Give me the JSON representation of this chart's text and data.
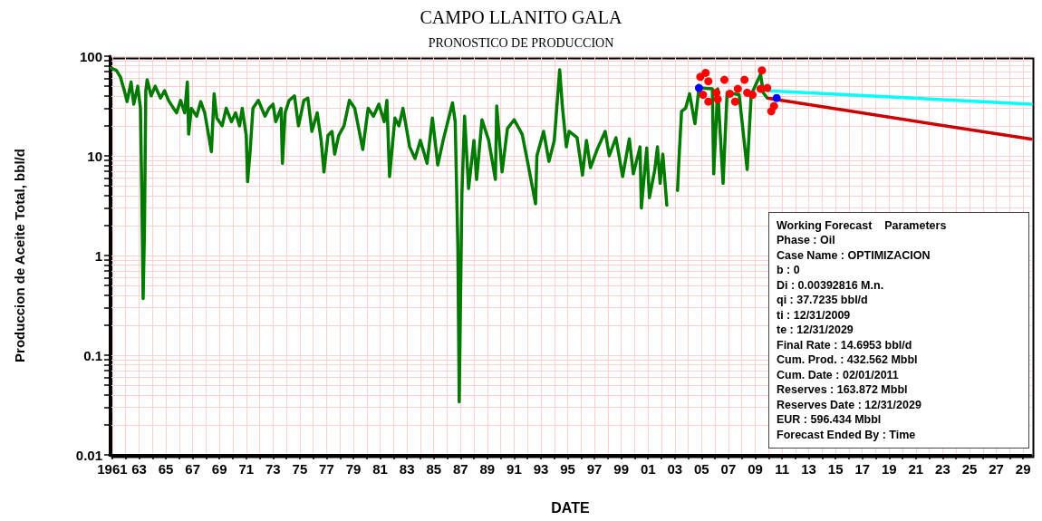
{
  "chart_data": {
    "type": "line",
    "title": "CAMPO LLANITO GALA",
    "subtitle": "PRONOSTICO DE PRODUCCION",
    "xlabel": "DATE",
    "ylabel": "Produccion de Aceite Total, bbl/d",
    "log": "y",
    "grid": true,
    "xlim": [
      1960.8,
      2029.6
    ],
    "ylim": [
      0.01,
      100
    ],
    "xticks": [
      {
        "value": 1961,
        "label": "1961"
      },
      {
        "value": 1962,
        "label": null
      },
      {
        "value": 1963,
        "label": "63"
      },
      {
        "value": 1964,
        "label": null
      },
      {
        "value": 1965,
        "label": "65"
      },
      {
        "value": 1966,
        "label": null
      },
      {
        "value": 1967,
        "label": "67"
      },
      {
        "value": 1968,
        "label": null
      },
      {
        "value": 1969,
        "label": "69"
      },
      {
        "value": 1970,
        "label": null
      },
      {
        "value": 1971,
        "label": "71"
      },
      {
        "value": 1972,
        "label": null
      },
      {
        "value": 1973,
        "label": "73"
      },
      {
        "value": 1974,
        "label": null
      },
      {
        "value": 1975,
        "label": "75"
      },
      {
        "value": 1976,
        "label": null
      },
      {
        "value": 1977,
        "label": "77"
      },
      {
        "value": 1978,
        "label": null
      },
      {
        "value": 1979,
        "label": "79"
      },
      {
        "value": 1980,
        "label": null
      },
      {
        "value": 1981,
        "label": "81"
      },
      {
        "value": 1982,
        "label": null
      },
      {
        "value": 1983,
        "label": "83"
      },
      {
        "value": 1984,
        "label": null
      },
      {
        "value": 1985,
        "label": "85"
      },
      {
        "value": 1986,
        "label": null
      },
      {
        "value": 1987,
        "label": "87"
      },
      {
        "value": 1988,
        "label": null
      },
      {
        "value": 1989,
        "label": "89"
      },
      {
        "value": 1990,
        "label": null
      },
      {
        "value": 1991,
        "label": "91"
      },
      {
        "value": 1992,
        "label": null
      },
      {
        "value": 1993,
        "label": "93"
      },
      {
        "value": 1994,
        "label": null
      },
      {
        "value": 1995,
        "label": "95"
      },
      {
        "value": 1996,
        "label": null
      },
      {
        "value": 1997,
        "label": "97"
      },
      {
        "value": 1998,
        "label": null
      },
      {
        "value": 1999,
        "label": "99"
      },
      {
        "value": 2000,
        "label": null
      },
      {
        "value": 2001,
        "label": "01"
      },
      {
        "value": 2002,
        "label": null
      },
      {
        "value": 2003,
        "label": "03"
      },
      {
        "value": 2004,
        "label": null
      },
      {
        "value": 2005,
        "label": "05"
      },
      {
        "value": 2006,
        "label": null
      },
      {
        "value": 2007,
        "label": "07"
      },
      {
        "value": 2008,
        "label": null
      },
      {
        "value": 2009,
        "label": "09"
      },
      {
        "value": 2010,
        "label": null
      },
      {
        "value": 2011,
        "label": "11"
      },
      {
        "value": 2012,
        "label": null
      },
      {
        "value": 2013,
        "label": "13"
      },
      {
        "value": 2014,
        "label": null
      },
      {
        "value": 2015,
        "label": "15"
      },
      {
        "value": 2016,
        "label": null
      },
      {
        "value": 2017,
        "label": "17"
      },
      {
        "value": 2018,
        "label": null
      },
      {
        "value": 2019,
        "label": "19"
      },
      {
        "value": 2020,
        "label": null
      },
      {
        "value": 2021,
        "label": "21"
      },
      {
        "value": 2022,
        "label": null
      },
      {
        "value": 2023,
        "label": "23"
      },
      {
        "value": 2024,
        "label": null
      },
      {
        "value": 2025,
        "label": "25"
      },
      {
        "value": 2026,
        "label": null
      },
      {
        "value": 2027,
        "label": "27"
      },
      {
        "value": 2028,
        "label": null
      },
      {
        "value": 2029,
        "label": "29"
      }
    ],
    "yticks": [
      0.01,
      {
        "value": 0.02,
        "label": null
      },
      {
        "value": 0.03,
        "label": null
      },
      {
        "value": 0.04,
        "label": null
      },
      {
        "value": 0.05,
        "label": null
      },
      {
        "value": 0.06,
        "label": null
      },
      {
        "value": 0.07,
        "label": null
      },
      {
        "value": 0.08,
        "label": null
      },
      {
        "value": 0.09,
        "label": null
      },
      0.1,
      {
        "value": 0.2,
        "label": null
      },
      {
        "value": 0.3,
        "label": null
      },
      {
        "value": 0.4,
        "label": null
      },
      {
        "value": 0.5,
        "label": null
      },
      {
        "value": 0.6,
        "label": null
      },
      {
        "value": 0.7,
        "label": null
      },
      {
        "value": 0.8,
        "label": null
      },
      {
        "value": 0.9,
        "label": null
      },
      1,
      {
        "value": 2,
        "label": null
      },
      {
        "value": 3,
        "label": null
      },
      {
        "value": 4,
        "label": null
      },
      {
        "value": 5,
        "label": null
      },
      {
        "value": 6,
        "label": null
      },
      {
        "value": 7,
        "label": null
      },
      {
        "value": 8,
        "label": null
      },
      {
        "value": 9,
        "label": null
      },
      10,
      {
        "value": 20,
        "label": null
      },
      {
        "value": 30,
        "label": null
      },
      {
        "value": 40,
        "label": null
      },
      {
        "value": 50,
        "label": null
      },
      {
        "value": 60,
        "label": null
      },
      {
        "value": 70,
        "label": null
      },
      {
        "value": 80,
        "label": null
      },
      {
        "value": 90,
        "label": null
      },
      100
    ],
    "series": [
      {
        "color": "#007a00",
        "x": [
          1960.9,
          1961.3,
          1961.6,
          1961.9,
          1962.1,
          1962.4,
          1962.6,
          1962.9,
          1963.1,
          1963.2,
          1963.3,
          1963.4,
          1963.5,
          1963.6,
          1963.9,
          1964.2,
          1964.6,
          1964.9,
          1965.2,
          1965.5,
          1965.8,
          1966.1,
          1966.4,
          1966.6,
          1966.7,
          1966.9,
          1967.3,
          1967.6,
          1967.9,
          1968.4,
          1968.6,
          1968.8,
          1969.2,
          1969.5,
          1969.9,
          1970.2,
          1970.5,
          1970.7,
          1971.0,
          1971.1,
          1971.3,
          1971.5,
          1971.9,
          1972.4,
          1972.7,
          1973.0,
          1973.2,
          1973.6,
          1973.7,
          1973.9,
          1974.2,
          1974.6,
          1974.9,
          1975.3,
          1975.6,
          1975.9,
          1976.3,
          1976.6,
          1976.8,
          1977.1,
          1977.4,
          1977.6,
          1977.9,
          1978.3,
          1978.7,
          1979.1,
          1979.5,
          1979.7,
          1980.1,
          1980.5,
          1980.9,
          1981.3,
          1981.5,
          1981.7,
          1982.1,
          1982.4,
          1982.7,
          1983.2,
          1983.6,
          1984.0,
          1984.5,
          1984.9,
          1985.3,
          1985.7,
          1986.4,
          1986.6,
          1986.8,
          1986.9,
          1987.1,
          1987.3,
          1987.6,
          1988.0,
          1988.2,
          1988.6,
          1989.1,
          1989.6,
          1989.7,
          1990.1,
          1990.5,
          1991.0,
          1991.6,
          1992.0,
          1992.6,
          1992.7,
          1993.2,
          1993.6,
          1994.0,
          1994.4,
          1994.6,
          1994.9,
          1995.1,
          1995.7,
          1995.9,
          1996.1,
          1996.4,
          1996.7,
          1997.2,
          1997.8,
          1998.1,
          1998.6,
          1999.1,
          1999.6,
          1999.9,
          2000.4,
          2000.5,
          2000.9,
          2001.1,
          2001.5,
          2001.7,
          2001.9,
          2002.1,
          2002.4,
          2002.8,
          2003.2,
          2003.3,
          2003.5,
          2003.8,
          2004.1,
          2004.5,
          2004.8,
          2005.8,
          2005.9,
          2006.2,
          2006.6,
          2006.9,
          2007.8,
          2008.4,
          2008.7,
          2009.4,
          2009.6,
          2009.9
        ],
        "values": [
          76,
          72,
          62,
          45,
          35,
          55,
          33,
          50,
          30,
          4.5,
          0.37,
          1.76,
          45,
          58,
          40,
          50,
          38,
          45,
          36,
          31,
          27,
          36,
          27,
          55,
          16.5,
          30,
          25,
          35,
          27,
          11,
          42,
          24,
          20,
          30,
          22,
          27,
          20,
          30,
          16,
          5.5,
          11.6,
          30,
          36,
          25,
          30,
          33,
          22,
          30,
          8.4,
          27,
          36,
          40,
          20,
          36,
          38,
          17.6,
          27,
          14,
          6.9,
          16,
          17.6,
          10.4,
          16,
          20,
          36,
          30,
          16,
          11.6,
          30,
          25,
          33,
          22,
          36,
          6.2,
          24,
          20,
          30,
          12.3,
          9.4,
          14.3,
          8.4,
          24,
          8.1,
          14.3,
          34,
          22,
          1.23,
          0.034,
          4.1,
          25,
          4.7,
          14.3,
          5.8,
          23,
          14.3,
          5.8,
          31.6,
          6.9,
          18.8,
          23,
          16.5,
          8.8,
          3.3,
          10,
          17.6,
          8.8,
          14.3,
          73,
          31.6,
          12.3,
          17.6,
          15.2,
          10,
          6.4,
          14.3,
          7.6,
          11.6,
          17.6,
          10,
          15.2,
          6.2,
          14.8,
          6.6,
          12.3,
          3.0,
          12,
          3.8,
          7.2,
          12.3,
          5.3,
          10.4,
          3.2,
          null,
          4.5,
          8.8,
          28,
          30,
          42,
          21,
          48,
          47,
          6.6,
          47,
          5.3,
          43,
          41,
          7.3,
          41,
          66,
          43,
          38
        ]
      },
      {
        "color": "#00ffff",
        "x": [
          2010.0,
          2029.6
        ],
        "values": [
          45,
          33
        ]
      },
      {
        "color": "#cc0000",
        "x": [
          2010.0,
          2029.6
        ],
        "values": [
          37.7,
          14.7
        ]
      },
      {
        "type": "scatter",
        "marker": "circle",
        "color": "#ff0000",
        "x": [
          2005.3,
          2004.9,
          2005.5,
          2005.1,
          2005.5,
          2006.1,
          2006.2,
          2006.7,
          2007.1,
          2007.5,
          2007.7,
          2008.2,
          2008.4,
          2008.8,
          2009.4,
          2009.5,
          2009.9,
          2010.4,
          2010.2
        ],
        "values": [
          68,
          62,
          56,
          41,
          35,
          43,
          37,
          58,
          42,
          35,
          47,
          58,
          43,
          41,
          47,
          72,
          48,
          31.6,
          28
        ]
      },
      {
        "type": "scatter",
        "marker": "circle",
        "color": "#0000ff",
        "x": [
          2004.8,
          2010.6
        ],
        "values": [
          48,
          38
        ]
      }
    ],
    "annotations": [
      "Working Forecast    Parameters",
      "Phase : Oil",
      "Case Name : OPTIMIZACION",
      "b : 0",
      "Di : 0.00392816 M.n.",
      "qi : 37.7235 bbl/d",
      "ti : 12/31/2009",
      "te : 12/31/2029",
      "Final Rate : 14.6953 bbl/d",
      "Cum. Prod. : 432.562 Mbbl",
      "Cum. Date : 02/01/2011",
      "Reserves : 163.872 Mbbl",
      "Reserves Date : 12/31/2029",
      "EUR : 596.434 Mbbl",
      "Forecast Ended By : Time"
    ]
  }
}
